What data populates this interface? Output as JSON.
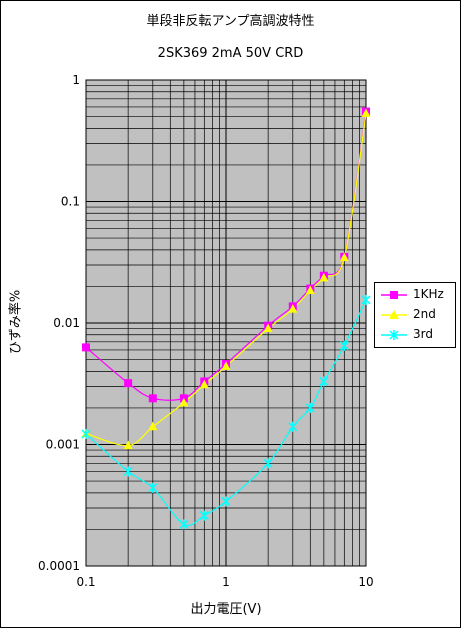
{
  "chart_data": {
    "type": "scatter",
    "title": "単段非反転アンプ高調波特性",
    "subtitle": "2SK369 2mA 50V CRD",
    "xlabel": "出力電圧(V)",
    "ylabel": "ひずみ率%",
    "xscale": "log",
    "yscale": "log",
    "xlim": [
      0.1,
      10
    ],
    "ylim": [
      0.0001,
      1
    ],
    "x_tick_labels": [
      "0.1",
      "1",
      "10"
    ],
    "y_tick_labels": [
      "1",
      "0.1",
      "0.01",
      "0.001",
      "0.0001"
    ],
    "grid": true,
    "legend_position": "right",
    "series": [
      {
        "name": "1KHz",
        "color": "#ff00ff",
        "marker": "square",
        "points": [
          [
            0.1,
            0.0063
          ],
          [
            0.2,
            0.0032
          ],
          [
            0.3,
            0.0024
          ],
          [
            0.5,
            0.0024
          ],
          [
            0.7,
            0.0033
          ],
          [
            1.0,
            0.0046
          ],
          [
            2.0,
            0.0095
          ],
          [
            3.0,
            0.0137
          ],
          [
            4.0,
            0.0192
          ],
          [
            5.0,
            0.0245
          ],
          [
            7.0,
            0.035
          ],
          [
            10.0,
            0.55
          ]
        ]
      },
      {
        "name": "2nd",
        "color": "#ffff00",
        "marker": "triangle",
        "points": [
          [
            0.1,
            0.00123
          ],
          [
            0.2,
            0.00098
          ],
          [
            0.3,
            0.0014
          ],
          [
            0.5,
            0.0022
          ],
          [
            0.7,
            0.0031
          ],
          [
            1.0,
            0.0044
          ],
          [
            2.0,
            0.009
          ],
          [
            3.0,
            0.013
          ],
          [
            4.0,
            0.0185
          ],
          [
            5.0,
            0.0235
          ],
          [
            7.0,
            0.0345
          ],
          [
            10.0,
            0.53
          ]
        ]
      },
      {
        "name": "3rd",
        "color": "#00ffff",
        "marker": "asterisk",
        "points": [
          [
            0.1,
            0.00122
          ],
          [
            0.2,
            0.0006
          ],
          [
            0.3,
            0.00044
          ],
          [
            0.5,
            0.00022
          ],
          [
            0.7,
            0.00026
          ],
          [
            1.0,
            0.00034
          ],
          [
            2.0,
            0.0007
          ],
          [
            3.0,
            0.0014
          ],
          [
            4.0,
            0.002
          ],
          [
            5.0,
            0.0033
          ],
          [
            7.0,
            0.0065
          ],
          [
            10.0,
            0.0155
          ]
        ]
      }
    ]
  }
}
